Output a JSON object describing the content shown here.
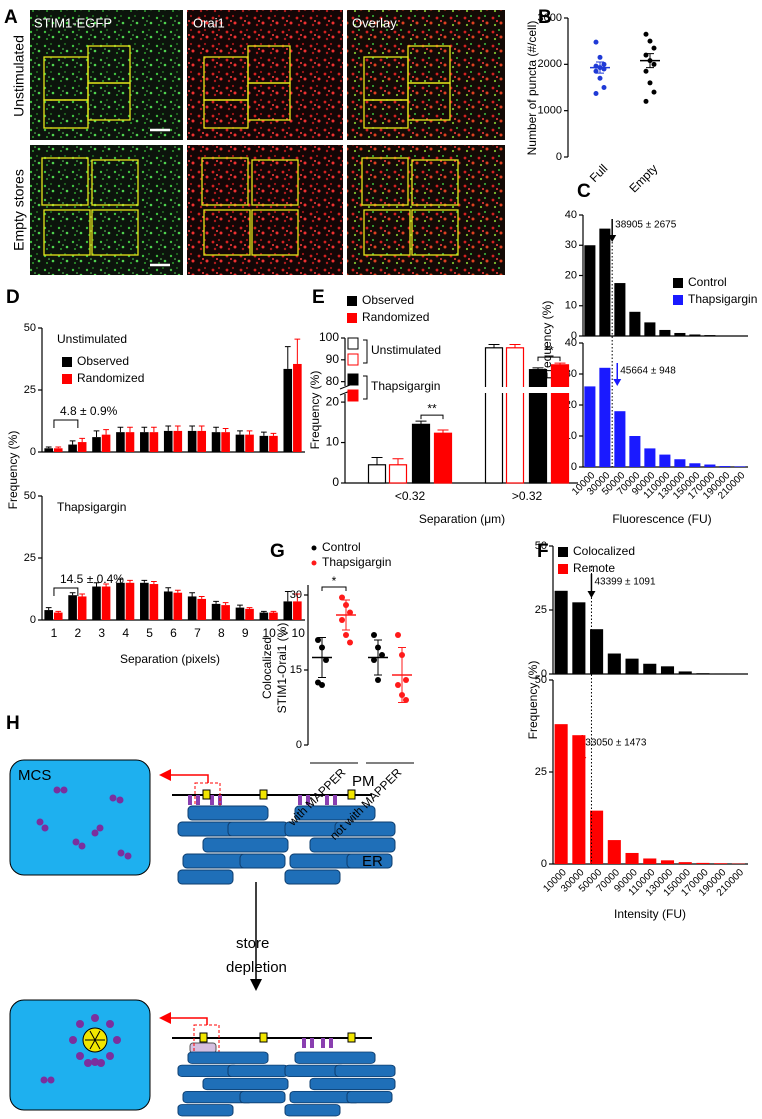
{
  "panel_labels": [
    "A",
    "B",
    "C",
    "D",
    "E",
    "F",
    "G",
    "H"
  ],
  "images": {
    "columns": [
      "STIM1-EGFP",
      "Orai1",
      "Overlay"
    ],
    "rows": [
      "Unstimulated",
      "Empty stores"
    ]
  },
  "diagram": {
    "mcs": "MCS",
    "pm": "PM",
    "er": "ER",
    "arrow_label": [
      "store",
      "depletion"
    ]
  },
  "chart_data": [
    {
      "type": "scatter",
      "ylabel": "Number of puncta (#/cell)",
      "categories": [
        "Full",
        "Empty"
      ],
      "colors": [
        "#1f3ad6",
        "#000000"
      ],
      "ylim": [
        0,
        3000
      ],
      "yticks": [
        0,
        1000,
        2000,
        3000
      ],
      "series": [
        {
          "values": [
            [
              2480,
              2150,
              2000,
              1960,
              1930,
              1900,
              1850,
              1700,
              1500,
              1370
            ],
            [
              2650,
              2500,
              2350,
              2200,
              2080,
              2000,
              1850,
              1600,
              1400,
              1200
            ]
          ],
          "means": [
            1930,
            2080
          ],
          "errors": [
            120,
            150
          ]
        }
      ]
    },
    {
      "type": "bar",
      "ylabel": "Frequency (%)",
      "xlabel": "Fluorescence (FU)",
      "categories": [
        "10000",
        "30000",
        "50000",
        "70000",
        "90000",
        "110000",
        "130000",
        "150000",
        "170000",
        "190000",
        "210000"
      ],
      "ylim": [
        0,
        40
      ],
      "yticks": [
        0,
        10,
        20,
        30,
        40
      ],
      "subplots": [
        {
          "series": [
            {
              "name": "Control",
              "color": "#000000",
              "values": [
                30,
                35.5,
                17.5,
                8,
                4.5,
                2,
                1,
                0.5,
                0.3,
                0.1,
                0.1
              ]
            }
          ],
          "marker": {
            "value": 38905,
            "label": "38905 ± 2675"
          }
        },
        {
          "series": [
            {
              "name": "Thapsigargin",
              "color": "#1a1aff",
              "values": [
                26,
                32,
                18,
                10,
                6,
                4,
                2.5,
                1.2,
                0.8,
                0.3,
                0.2
              ]
            }
          ],
          "marker": {
            "value": 45664,
            "label": "45664 ± 948"
          }
        }
      ]
    },
    {
      "type": "bar",
      "ylabel": "Frequency (%)",
      "xlabel": "Separation (pixels)",
      "categories": [
        "1",
        "2",
        "3",
        "4",
        "5",
        "6",
        "7",
        "8",
        "9",
        "10",
        "> 10"
      ],
      "ylim": [
        0,
        50
      ],
      "yticks": [
        0,
        25,
        50
      ],
      "subplots": [
        {
          "title": "Unstimulated",
          "annotation": "4.8 ± 0.9%",
          "series": [
            {
              "name": "Observed",
              "color": "#000000",
              "values": [
                1.5,
                3,
                6,
                8,
                8,
                8.5,
                8.5,
                8,
                7,
                6.5,
                33.5
              ],
              "errors": [
                0.5,
                1.5,
                2.5,
                2,
                2,
                2,
                2,
                2,
                1.5,
                1.5,
                9
              ]
            },
            {
              "name": "Randomized",
              "color": "#ff0000",
              "values": [
                1.5,
                4,
                7,
                8,
                8,
                8.5,
                8.5,
                8,
                7,
                6.5,
                35.5
              ],
              "errors": [
                0.5,
                1.5,
                2,
                2,
                2,
                2,
                2,
                1.5,
                1.5,
                1,
                10
              ]
            }
          ]
        },
        {
          "title": "Thapsigargin",
          "annotation": "14.5 ± 0.4%",
          "series": [
            {
              "color": "#000000",
              "values": [
                4,
                10,
                13.5,
                15,
                15,
                11.5,
                9.5,
                6.5,
                5,
                3,
                7.5
              ],
              "errors": [
                1,
                1,
                1.5,
                1.5,
                1,
                1.5,
                1.5,
                1,
                1,
                0.5,
                4
              ]
            },
            {
              "color": "#ff0000",
              "values": [
                3,
                9.5,
                13.5,
                15,
                14.5,
                11,
                8.5,
                6,
                4.5,
                3,
                7.5
              ],
              "errors": [
                0.5,
                1,
                1,
                1,
                1,
                1,
                1,
                1,
                0.5,
                0.5,
                3
              ]
            }
          ]
        }
      ]
    },
    {
      "type": "bar",
      "ylabel": "Frequency (%)",
      "xlabel": "Separation (μm)",
      "categories": [
        "<0.32",
        ">0.32"
      ],
      "ylim": [
        0,
        100
      ],
      "axis_break": [
        22,
        78
      ],
      "yticks": [
        0,
        10,
        20,
        80,
        90,
        100
      ],
      "legend": [
        {
          "name": "Observed",
          "color": "#000000"
        },
        {
          "name": "Randomized",
          "color": "#ff0000"
        }
      ],
      "group_legend": [
        "Unstimulated",
        "Thapsigargin"
      ],
      "series": [
        {
          "color": "#000000",
          "filled": false,
          "values": [
            4.5,
            95.5
          ],
          "errors": [
            1.8,
            1.5
          ]
        },
        {
          "color": "#ff0000",
          "filled": false,
          "values": [
            4.5,
            95.5
          ],
          "errors": [
            1.5,
            1.5
          ]
        },
        {
          "color": "#000000",
          "filled": true,
          "values": [
            14.5,
            85.5
          ],
          "errors": [
            0.8,
            0.8
          ]
        },
        {
          "color": "#ff0000",
          "filled": true,
          "values": [
            12.3,
            87.7
          ],
          "errors": [
            0.8,
            0.8
          ]
        }
      ],
      "significance": [
        {
          "category": 0,
          "label": "**"
        },
        {
          "category": 1,
          "label": "**"
        }
      ]
    },
    {
      "type": "bar",
      "ylabel": "Frequency (%)",
      "xlabel": "Intensity (FU)",
      "categories": [
        "10000",
        "30000",
        "50000",
        "70000",
        "90000",
        "110000",
        "130000",
        "150000",
        "170000",
        "190000",
        "210000"
      ],
      "ylim": [
        0,
        50
      ],
      "yticks": [
        0,
        25,
        50
      ],
      "subplots": [
        {
          "series": [
            {
              "name": "Colocalized",
              "color": "#000000",
              "values": [
                32.5,
                28,
                17.5,
                8,
                6,
                4,
                3,
                1,
                0.3,
                0.2,
                0.1
              ]
            }
          ],
          "marker": {
            "value": 43399,
            "label": "43399 ± 1091"
          }
        },
        {
          "series": [
            {
              "name": "Remote",
              "color": "#ff0000",
              "values": [
                38,
                35,
                14.5,
                6.5,
                3,
                1.5,
                1,
                0.5,
                0.3,
                0.2,
                0.1
              ]
            }
          ],
          "marker": {
            "value": 33050,
            "label": "33050 ± 1473"
          }
        }
      ]
    },
    {
      "type": "scatter",
      "ylabel": [
        "Colocalized",
        "STIM1-Orai1 (%)"
      ],
      "categories": [
        "with MAPPER",
        "not with MAPPER"
      ],
      "ylim": [
        0,
        32
      ],
      "yticks": [
        0,
        15,
        30
      ],
      "series": [
        {
          "name": "Control",
          "color": "#000000",
          "values": [
            [
              21,
              19.5,
              17,
              12.5,
              12
            ],
            [
              22,
              19.5,
              18,
              17,
              13
            ]
          ],
          "means": [
            17.5,
            17.5
          ],
          "errors": [
            4,
            3.5
          ]
        },
        {
          "name": "Thapsigargin",
          "color": "#ff1a1a",
          "values": [
            [
              29.5,
              28,
              26.5,
              25,
              22,
              20.5
            ],
            [
              22,
              18,
              13,
              12,
              10,
              9
            ]
          ],
          "means": [
            26,
            14
          ],
          "errors": [
            3,
            5.5
          ]
        }
      ],
      "significance": [
        {
          "category": 0,
          "label": "*"
        }
      ]
    }
  ]
}
